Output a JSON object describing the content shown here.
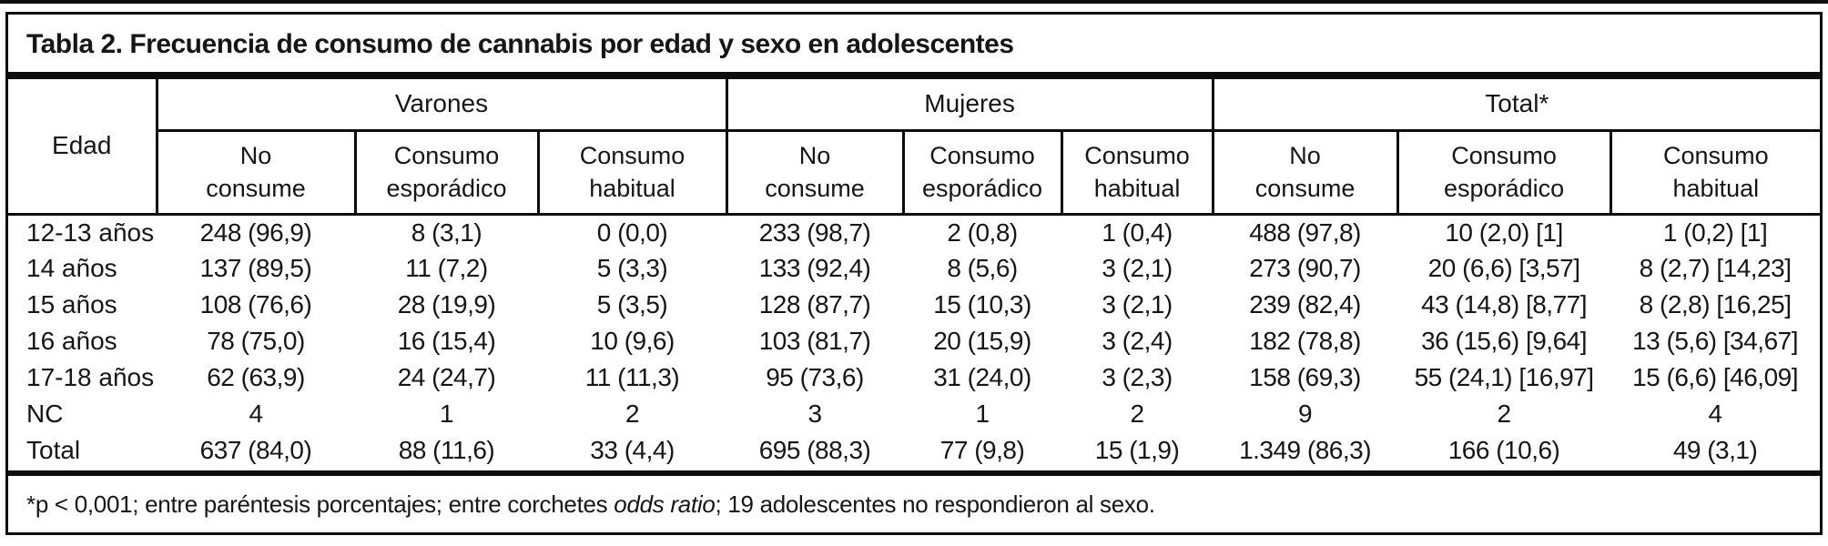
{
  "title": "Tabla 2. Frecuencia de consumo de cannabis por edad y sexo en adolescentes",
  "header": {
    "edad": "Edad",
    "groups": [
      {
        "label": "Varones",
        "sub": [
          [
            "No",
            "consume"
          ],
          [
            "Consumo",
            "esporádico"
          ],
          [
            "Consumo",
            "habitual"
          ]
        ]
      },
      {
        "label": "Mujeres",
        "sub": [
          [
            "No",
            "consume"
          ],
          [
            "Consumo",
            "esporádico"
          ],
          [
            "Consumo",
            "habitual"
          ]
        ]
      },
      {
        "label": "Total*",
        "sub": [
          [
            "No",
            "consume"
          ],
          [
            "Consumo",
            "esporádico"
          ],
          [
            "Consumo",
            "habitual"
          ]
        ]
      }
    ]
  },
  "rows": [
    {
      "label": "12-13 años",
      "values": [
        "248 (96,9)",
        "8 (3,1)",
        "0 (0,0)",
        "233 (98,7)",
        "2 (0,8)",
        "1 (0,4)",
        "488 (97,8)",
        "10 (2,0) [1]",
        "1 (0,2) [1]"
      ]
    },
    {
      "label": "14 años",
      "values": [
        "137 (89,5)",
        "11 (7,2)",
        "5 (3,3)",
        "133 (92,4)",
        "8 (5,6)",
        "3 (2,1)",
        "273 (90,7)",
        "20 (6,6) [3,57]",
        "8 (2,7) [14,23]"
      ]
    },
    {
      "label": "15 años",
      "values": [
        "108 (76,6)",
        "28 (19,9)",
        "5 (3,5)",
        "128 (87,7)",
        "15 (10,3)",
        "3 (2,1)",
        "239 (82,4)",
        "43 (14,8) [8,77]",
        "8 (2,8) [16,25]"
      ]
    },
    {
      "label": "16 años",
      "values": [
        "78 (75,0)",
        "16 (15,4)",
        "10 (9,6)",
        "103 (81,7)",
        "20 (15,9)",
        "3 (2,4)",
        "182 (78,8)",
        "36 (15,6) [9,64]",
        "13 (5,6) [34,67]"
      ]
    },
    {
      "label": "17-18 años",
      "values": [
        "62 (63,9)",
        "24 (24,7)",
        "11 (11,3)",
        "95 (73,6)",
        "31 (24,0)",
        "3 (2,3)",
        "158 (69,3)",
        "55 (24,1) [16,97]",
        "15 (6,6) [46,09]"
      ]
    },
    {
      "label": "NC",
      "values": [
        "4",
        "1",
        "2",
        "3",
        "1",
        "2",
        "9",
        "2",
        "4"
      ]
    },
    {
      "label": "Total",
      "values": [
        "637 (84,0)",
        "88 (11,6)",
        "33 (4,4)",
        "695 (88,3)",
        "77 (9,8)",
        "15 (1,9)",
        "1.349 (86,3)",
        "166 (10,6)",
        "49 (3,1)"
      ]
    }
  ],
  "footnote": {
    "part1": "*p < 0,001; entre paréntesis porcentajes; entre corchetes ",
    "italic": "odds ratio",
    "part2": "; 19 adolescentes no respondieron al sexo."
  },
  "colors": {
    "ink": "#0d0d0d",
    "background": "#ffffff"
  }
}
